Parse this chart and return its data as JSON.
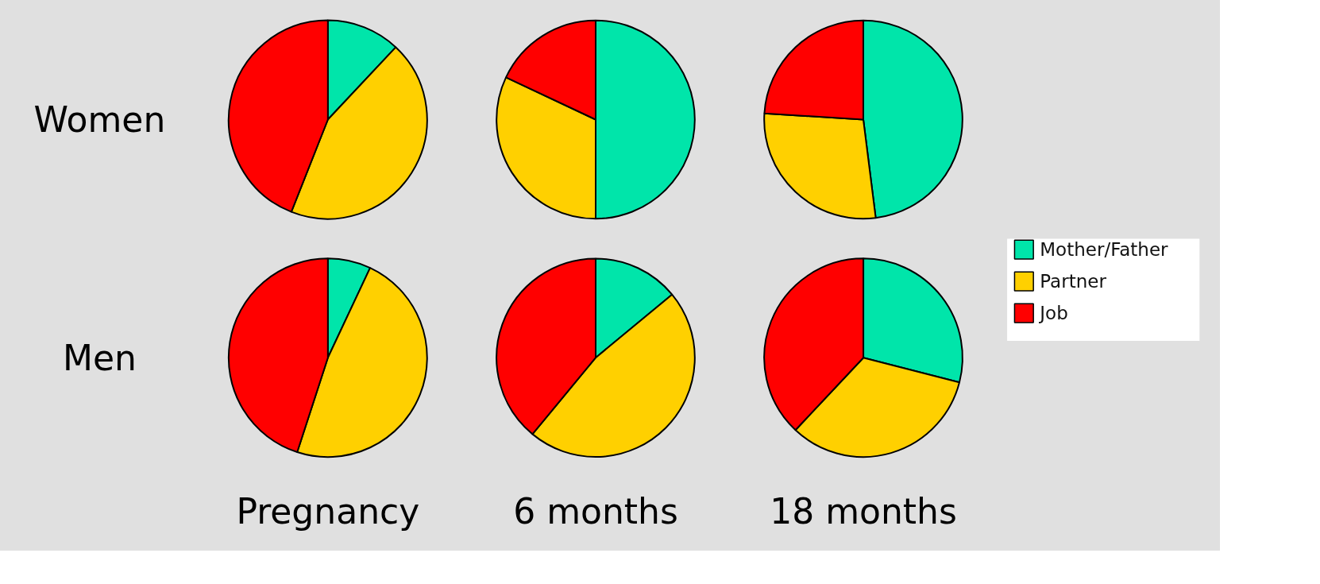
{
  "chart_data": [
    {
      "type": "pie",
      "ylabel": "Women",
      "legend": "right",
      "categories": [
        "Mother/Father",
        "Partner",
        "Job"
      ],
      "values": [
        12,
        44,
        44
      ],
      "colors": [
        "#00e5aa",
        "#ffd000",
        "#ff0000"
      ]
    },
    {
      "type": "pie",
      "categories": [
        null,
        null,
        null
      ],
      "values": [
        50,
        32,
        18
      ],
      "colors": [
        "#00e5aa",
        "#ffd000",
        "#ff0000"
      ]
    },
    {
      "type": "pie",
      "categories": [
        null,
        null,
        null
      ],
      "values": [
        48,
        28,
        24
      ],
      "colors": [
        "#00e5aa",
        "#ffd000",
        "#ff0000"
      ]
    },
    {
      "type": "pie",
      "ylabel": "Men",
      "xlabel": "Pregnancy",
      "categories": [
        null,
        null,
        null
      ],
      "values": [
        7,
        48,
        45
      ],
      "colors": [
        "#00e5aa",
        "#ffd000",
        "#ff0000"
      ]
    },
    {
      "type": "pie",
      "xlabel": "6 months",
      "categories": [
        null,
        null,
        null
      ],
      "values": [
        14,
        47,
        39
      ],
      "colors": [
        "#00e5aa",
        "#ffd000",
        "#ff0000"
      ]
    },
    {
      "type": "pie",
      "xlabel": "18 months",
      "categories": [
        null,
        null,
        null
      ],
      "values": [
        29,
        33,
        38
      ],
      "colors": [
        "#00e5aa",
        "#ffd000",
        "#ff0000"
      ]
    }
  ]
}
